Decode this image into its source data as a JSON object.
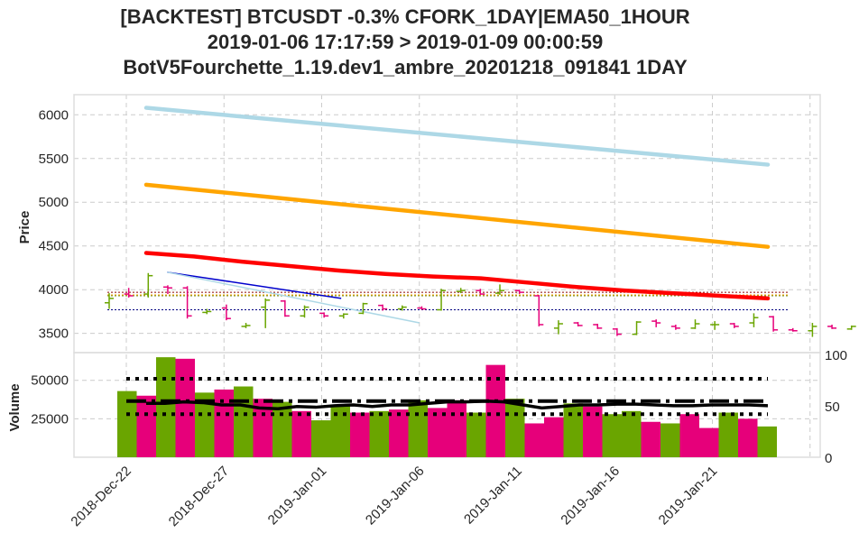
{
  "title_lines": [
    "[BACKTEST] BTCUSDT -0.3% CFORK_1DAY|EMA50_1HOUR",
    "2019-01-06 17:17:59 > 2019-01-09 00:00:59",
    "BotV5Fourchette_1.19.dev1_ambre_20201218_091841 1DAY"
  ],
  "chart_data": [
    {
      "type": "candlestick",
      "ylabel": "Price",
      "ylim": [
        3280,
        6230
      ],
      "x_tick_labels": [
        "2018-Dec-22",
        "2018-Dec-27",
        "2019-Jan-01",
        "2019-Jan-06",
        "2019-Jan-11",
        "2019-Jan-16",
        "2019-Jan-21"
      ],
      "y_ticks": [
        3500,
        4000,
        4500,
        5000,
        5500,
        6000
      ],
      "grid": true,
      "colors": {
        "up": "#6aa500",
        "down": "#e6007a"
      },
      "candles": [
        {
          "o": 3850,
          "h": 3960,
          "l": 3780,
          "c": 3900
        },
        {
          "o": 3950,
          "h": 4020,
          "l": 3910,
          "c": 3930
        },
        {
          "o": 3950,
          "h": 4190,
          "l": 3910,
          "c": 4160
        },
        {
          "o": 4030,
          "h": 4050,
          "l": 3950,
          "c": 4020
        },
        {
          "o": 4020,
          "h": 4040,
          "l": 3670,
          "c": 3700
        },
        {
          "o": 3740,
          "h": 3780,
          "l": 3720,
          "c": 3750
        },
        {
          "o": 3790,
          "h": 3830,
          "l": 3650,
          "c": 3670
        },
        {
          "o": 3580,
          "h": 3620,
          "l": 3560,
          "c": 3590
        },
        {
          "o": 3800,
          "h": 3900,
          "l": 3560,
          "c": 3880
        },
        {
          "o": 3870,
          "h": 3880,
          "l": 3690,
          "c": 3700
        },
        {
          "o": 3700,
          "h": 3820,
          "l": 3680,
          "c": 3800
        },
        {
          "o": 3730,
          "h": 3740,
          "l": 3680,
          "c": 3700
        },
        {
          "o": 3700,
          "h": 3730,
          "l": 3670,
          "c": 3720
        },
        {
          "o": 3730,
          "h": 3850,
          "l": 3720,
          "c": 3840
        },
        {
          "o": 3820,
          "h": 3830,
          "l": 3760,
          "c": 3780
        },
        {
          "o": 3780,
          "h": 3820,
          "l": 3760,
          "c": 3800
        },
        {
          "o": 3790,
          "h": 3810,
          "l": 3770,
          "c": 3780
        },
        {
          "o": 3770,
          "h": 4010,
          "l": 3760,
          "c": 3990
        },
        {
          "o": 3980,
          "h": 4020,
          "l": 3960,
          "c": 3990
        },
        {
          "o": 3990,
          "h": 4010,
          "l": 3940,
          "c": 3950
        },
        {
          "o": 3960,
          "h": 4060,
          "l": 3940,
          "c": 3990
        },
        {
          "o": 3990,
          "h": 4000,
          "l": 3950,
          "c": 3970
        },
        {
          "o": 3930,
          "h": 3940,
          "l": 3580,
          "c": 3600
        },
        {
          "o": 3560,
          "h": 3650,
          "l": 3490,
          "c": 3610
        },
        {
          "o": 3620,
          "h": 3630,
          "l": 3580,
          "c": 3590
        },
        {
          "o": 3600,
          "h": 3610,
          "l": 3550,
          "c": 3560
        },
        {
          "o": 3550,
          "h": 3560,
          "l": 3470,
          "c": 3490
        },
        {
          "o": 3490,
          "h": 3640,
          "l": 3480,
          "c": 3630
        },
        {
          "o": 3640,
          "h": 3660,
          "l": 3570,
          "c": 3620
        },
        {
          "o": 3580,
          "h": 3600,
          "l": 3540,
          "c": 3560
        },
        {
          "o": 3560,
          "h": 3660,
          "l": 3550,
          "c": 3610
        },
        {
          "o": 3600,
          "h": 3640,
          "l": 3540,
          "c": 3600
        },
        {
          "o": 3610,
          "h": 3620,
          "l": 3560,
          "c": 3580
        },
        {
          "o": 3620,
          "h": 3730,
          "l": 3570,
          "c": 3680
        },
        {
          "o": 3690,
          "h": 3700,
          "l": 3520,
          "c": 3540
        },
        {
          "o": 3540,
          "h": 3560,
          "l": 3520,
          "c": 3530
        },
        {
          "o": 3530,
          "h": 3620,
          "l": 3460,
          "c": 3580
        },
        {
          "o": 3580,
          "h": 3600,
          "l": 3550,
          "c": 3560
        },
        {
          "o": 3550,
          "h": 3590,
          "l": 3540,
          "c": 3580
        }
      ],
      "ema_lines": [
        {
          "color": "#add8e6",
          "start": 6080,
          "end": 5430
        },
        {
          "color": "#ffa500",
          "start": 5200,
          "end": 4490
        },
        {
          "color": "#ff0000",
          "points": [
            4420,
            4380,
            4320,
            4270,
            4220,
            4180,
            4150,
            4130,
            4080,
            4030,
            3990,
            3960,
            3930,
            3900
          ]
        }
      ],
      "trend_lines": [
        {
          "color": "#0000cd",
          "from": {
            "i": 2,
            "v": 4200
          },
          "to": {
            "i": 11,
            "v": 3900
          }
        },
        {
          "color": "#add8e6",
          "from": {
            "i": 2,
            "v": 4200
          },
          "to": {
            "i": 15,
            "v": 3620
          }
        }
      ],
      "hlines": [
        {
          "value": 3970,
          "color": "#8b0000"
        },
        {
          "value": 3940,
          "color": "#ffa500"
        },
        {
          "value": 3930,
          "color": "#6b8e23"
        },
        {
          "value": 3770,
          "color": "#000080"
        }
      ]
    },
    {
      "type": "bar",
      "ylabel": "Volume",
      "ylim": [
        0,
        68000
      ],
      "y_ticks": [
        25000,
        50000
      ],
      "right_ticks": [
        0,
        50,
        100
      ],
      "values": [
        43000,
        40000,
        65000,
        64000,
        42000,
        44000,
        46000,
        38000,
        36000,
        30000,
        24000,
        34000,
        29000,
        30000,
        31000,
        37000,
        32000,
        37000,
        29000,
        60000,
        38000,
        22000,
        26000,
        35000,
        33000,
        28000,
        30000,
        23000,
        22000,
        28000,
        19000,
        29000,
        25000,
        20000
      ],
      "colors": [
        "up",
        "down",
        "up",
        "down",
        "up",
        "down",
        "up",
        "down",
        "up",
        "down",
        "up",
        "up",
        "down",
        "up",
        "down",
        "up",
        "down",
        "down",
        "up",
        "down",
        "up",
        "down",
        "down",
        "up",
        "down",
        "up",
        "up",
        "down",
        "up",
        "down",
        "down",
        "up",
        "down",
        "up"
      ],
      "levels": {
        "upper": 51000,
        "mid": 36500,
        "lower": 28000
      },
      "ma": [
        35000,
        35000,
        36000,
        35500,
        34000,
        34000,
        32000,
        31500,
        33000,
        32500,
        33500,
        34000,
        33000,
        34000,
        34000,
        35000,
        36000,
        36000,
        36500,
        36000,
        34000,
        32000,
        33000,
        34000,
        34000,
        34500,
        34500,
        34000,
        33500,
        33500,
        34000,
        34000,
        34000,
        33500
      ]
    }
  ]
}
